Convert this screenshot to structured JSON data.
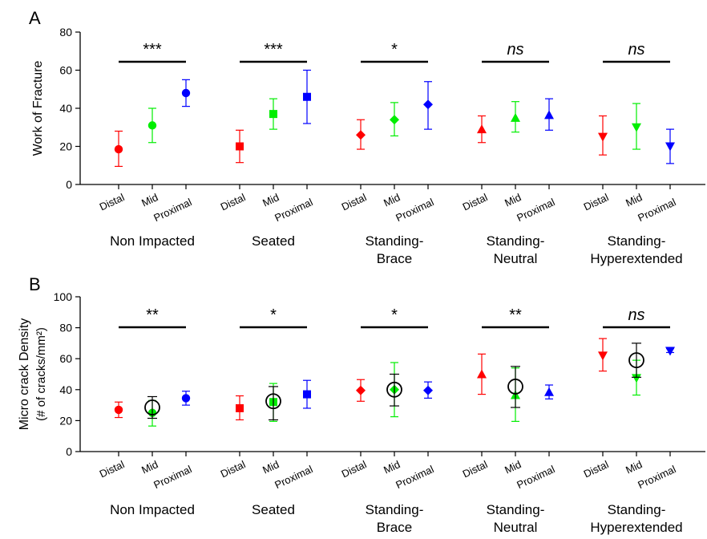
{
  "chart_data": [
    {
      "panel": "A",
      "type": "scatter",
      "ylabel": "Work of Fracture",
      "ylabel_line2": "",
      "ylim": [
        0,
        80
      ],
      "yticks": [
        0,
        20,
        40,
        60,
        80
      ],
      "grid": false,
      "tick_labels": [
        "Distal",
        "Mid",
        "Proximal"
      ],
      "groups": [
        {
          "name": "Non Impacted",
          "name2": "",
          "marker": "circle",
          "sig": "***",
          "sig_italic": false,
          "points": [
            {
              "mean": 18.5,
              "lo": 9.5,
              "hi": 28
            },
            {
              "mean": 31,
              "lo": 22,
              "hi": 40
            },
            {
              "mean": 48,
              "lo": 41,
              "hi": 55
            }
          ]
        },
        {
          "name": "Seated",
          "name2": "",
          "marker": "square",
          "sig": "***",
          "sig_italic": false,
          "points": [
            {
              "mean": 20,
              "lo": 11.5,
              "hi": 28.5
            },
            {
              "mean": 37,
              "lo": 29,
              "hi": 45
            },
            {
              "mean": 46,
              "lo": 32,
              "hi": 60
            }
          ]
        },
        {
          "name": "Standing-",
          "name2": "Brace",
          "marker": "diamond",
          "sig": "*",
          "sig_italic": false,
          "points": [
            {
              "mean": 26,
              "lo": 18.5,
              "hi": 34
            },
            {
              "mean": 34,
              "lo": 25.5,
              "hi": 43
            },
            {
              "mean": 42,
              "lo": 29,
              "hi": 54
            }
          ]
        },
        {
          "name": "Standing-",
          "name2": "Neutral",
          "marker": "triangle-up",
          "sig": "ns",
          "sig_italic": true,
          "points": [
            {
              "mean": 29,
              "lo": 22,
              "hi": 36
            },
            {
              "mean": 35,
              "lo": 27.5,
              "hi": 43.5
            },
            {
              "mean": 36.5,
              "lo": 28.5,
              "hi": 45
            }
          ]
        },
        {
          "name": "Standing-",
          "name2": "Hyperextended",
          "marker": "triangle-down",
          "sig": "ns",
          "sig_italic": true,
          "points": [
            {
              "mean": 25,
              "lo": 15.5,
              "hi": 36
            },
            {
              "mean": 30,
              "lo": 18.5,
              "hi": 42.5
            },
            {
              "mean": 20,
              "lo": 11,
              "hi": 29
            }
          ]
        }
      ],
      "overall": []
    },
    {
      "panel": "B",
      "type": "scatter",
      "ylabel": "Micro crack Density",
      "ylabel_line2": "(# of cracks/mm²)",
      "ylim": [
        0,
        100
      ],
      "yticks": [
        0,
        20,
        40,
        60,
        80,
        100
      ],
      "grid": false,
      "tick_labels": [
        "Distal",
        "Mid",
        "Proximal"
      ],
      "groups": [
        {
          "name": "Non Impacted",
          "name2": "",
          "marker": "circle",
          "sig": "**",
          "sig_italic": false,
          "points": [
            {
              "mean": 27,
              "lo": 22,
              "hi": 32
            },
            {
              "mean": 25,
              "lo": 16.5,
              "hi": 33
            },
            {
              "mean": 34.5,
              "lo": 30,
              "hi": 39
            }
          ]
        },
        {
          "name": "Seated",
          "name2": "",
          "marker": "square",
          "sig": "*",
          "sig_italic": false,
          "points": [
            {
              "mean": 28,
              "lo": 20.5,
              "hi": 36
            },
            {
              "mean": 32,
              "lo": 19.5,
              "hi": 44
            },
            {
              "mean": 37,
              "lo": 28,
              "hi": 46
            }
          ]
        },
        {
          "name": "Standing-",
          "name2": "Brace",
          "marker": "diamond",
          "sig": "*",
          "sig_italic": false,
          "points": [
            {
              "mean": 39.5,
              "lo": 32.5,
              "hi": 46.5
            },
            {
              "mean": 40,
              "lo": 22.5,
              "hi": 57.5
            },
            {
              "mean": 39.5,
              "lo": 34.5,
              "hi": 45
            }
          ]
        },
        {
          "name": "Standing-",
          "name2": "Neutral",
          "marker": "triangle-up",
          "sig": "**",
          "sig_italic": false,
          "points": [
            {
              "mean": 50,
              "lo": 37,
              "hi": 63
            },
            {
              "mean": 36.5,
              "lo": 19.5,
              "hi": 54
            },
            {
              "mean": 38.5,
              "lo": 34,
              "hi": 43
            }
          ]
        },
        {
          "name": "Standing-",
          "name2": "Hyperextended",
          "marker": "triangle-down",
          "sig": "ns",
          "sig_italic": true,
          "points": [
            {
              "mean": 62,
              "lo": 52,
              "hi": 73
            },
            {
              "mean": 47.5,
              "lo": 36.5,
              "hi": 59
            },
            {
              "mean": 65,
              "lo": 64,
              "hi": 66.5
            }
          ]
        }
      ],
      "overall": [
        {
          "mean": 28.5,
          "lo": 21.5,
          "hi": 35.5
        },
        {
          "mean": 32.5,
          "lo": 20.5,
          "hi": 42
        },
        {
          "mean": 40,
          "lo": 29.5,
          "hi": 50
        },
        {
          "mean": 42,
          "lo": 28.5,
          "hi": 55
        },
        {
          "mean": 59,
          "lo": 48,
          "hi": 70
        }
      ]
    }
  ],
  "colors": {
    "distal": "#ff0000",
    "mid": "#00ee00",
    "proximal": "#0000ff",
    "overall": "#000000"
  },
  "icons": {
    "circle": "circle-marker-icon",
    "square": "square-marker-icon",
    "diamond": "diamond-marker-icon",
    "triangle-up": "triangle-up-marker-icon",
    "triangle-down": "triangle-down-marker-icon"
  }
}
